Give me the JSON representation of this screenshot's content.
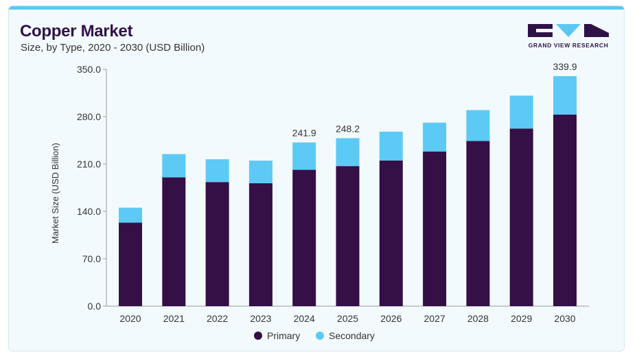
{
  "header": {
    "title": "Copper Market",
    "subtitle": "Size, by Type, 2020 - 2030 (USD Billion)"
  },
  "logo": {
    "text": "GRAND VIEW RESEARCH"
  },
  "colors": {
    "primary": "#341046",
    "secondary": "#5ccaf5",
    "accent": "#5bc8f3"
  },
  "chart_data": {
    "type": "bar",
    "stacked": true,
    "title": "Copper Market",
    "subtitle": "Size, by Type, 2020 - 2030 (USD Billion)",
    "xlabel": "",
    "ylabel": "Market Size (USD Billion)",
    "ylim": [
      0,
      350
    ],
    "yticks": [
      "0.0",
      "70.0",
      "140.0",
      "210.0",
      "280.0",
      "350.0"
    ],
    "categories": [
      "2020",
      "2021",
      "2022",
      "2023",
      "2024",
      "2025",
      "2026",
      "2027",
      "2028",
      "2029",
      "2030"
    ],
    "series": [
      {
        "name": "Primary",
        "color": "#341046",
        "values": [
          123.5,
          190.4,
          183.4,
          181.7,
          201.6,
          206.9,
          215.3,
          228.6,
          244.1,
          262.5,
          283.1
        ]
      },
      {
        "name": "Secondary",
        "color": "#5ccaf5",
        "values": [
          22.0,
          34.3,
          33.7,
          33.4,
          40.3,
          41.3,
          42.6,
          42.6,
          45.6,
          48.6,
          56.8
        ]
      }
    ],
    "data_labels": [
      {
        "category": "2024",
        "text": "241.9"
      },
      {
        "category": "2025",
        "text": "248.2"
      },
      {
        "category": "2030",
        "text": "339.9"
      }
    ],
    "legend": {
      "position": "bottom",
      "entries": [
        "Primary",
        "Secondary"
      ]
    },
    "grid": false
  }
}
